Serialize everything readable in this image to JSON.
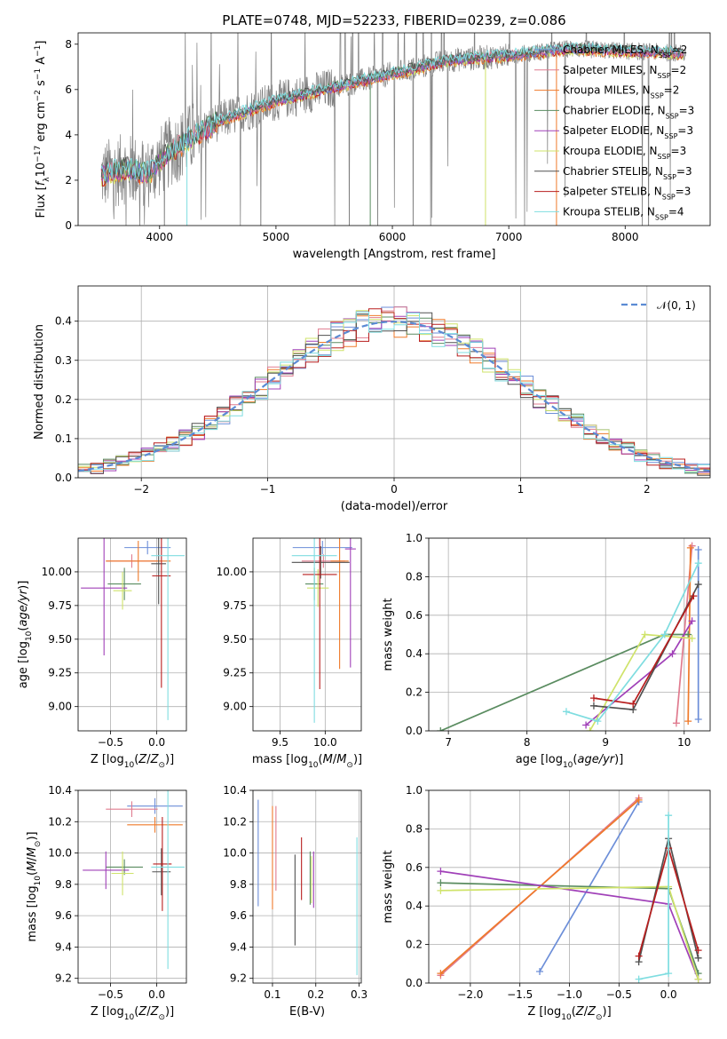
{
  "figure": {
    "title": "PLATE=0748, MJD=52233, FIBERID=0239, z=0.086"
  },
  "colors": [
    "#6c8ed8",
    "#e07b8f",
    "#ef7a2a",
    "#5a8c60",
    "#a040b8",
    "#cfe36a",
    "#505050",
    "#b81f1f",
    "#7fdde0"
  ],
  "chart_data": [
    {
      "type": "line",
      "title": "PLATE=0748, MJD=52233, FIBERID=0239, z=0.086",
      "xlabel": "wavelength [Angstrom, rest frame]",
      "ylabel": "Flux [f_λ10⁻¹⁷ erg cm⁻² s⁻¹ A⁻¹]",
      "xlim": [
        3300,
        8730
      ],
      "ylim": [
        0,
        8.5
      ],
      "xticks": [
        "4000",
        "5000",
        "6000",
        "7000",
        "8000"
      ],
      "yticks": [
        "0",
        "2",
        "4",
        "6",
        "8"
      ],
      "legend": [
        "Chabrier MILES, N_SSP=2",
        "Salpeter MILES, N_SSP=2",
        "Kroupa MILES, N_SSP=2",
        "Chabrier ELODIE, N_SSP=3",
        "Salpeter ELODIE, N_SSP=3",
        "Kroupa ELODIE, N_SSP=3",
        "Chabrier STELIB, N_SSP=3",
        "Salpeter STELIB, N_SSP=3",
        "Kroupa STELIB, N_SSP=4"
      ],
      "legend_display": [
        {
          "text": "Chabrier MILES, N",
          "sub": "SSP",
          "post": "=2"
        },
        {
          "text": "Salpeter MILES, N",
          "sub": "SSP",
          "post": "=2"
        },
        {
          "text": "Kroupa MILES, N",
          "sub": "SSP",
          "post": "=2"
        },
        {
          "text": "Chabrier ELODIE, N",
          "sub": "SSP",
          "post": "=3"
        },
        {
          "text": "Salpeter ELODIE, N",
          "sub": "SSP",
          "post": "=3"
        },
        {
          "text": "Kroupa ELODIE, N",
          "sub": "SSP",
          "post": "=3"
        },
        {
          "text": "Chabrier STELIB, N",
          "sub": "SSP",
          "post": "=3"
        },
        {
          "text": "Salpeter STELIB, N",
          "sub": "SSP",
          "post": "=3"
        },
        {
          "text": "Kroupa STELIB, N",
          "sub": "SSP",
          "post": "=4"
        }
      ],
      "legend_position": "right",
      "grid": false,
      "continuum": {
        "x": [
          3500,
          3700,
          3900,
          4100,
          4500,
          5000,
          5500,
          6000,
          6500,
          7000,
          7500,
          8000,
          8500
        ],
        "y": [
          2.2,
          2.5,
          2.3,
          3.3,
          4.6,
          5.5,
          6.1,
          6.7,
          7.3,
          7.5,
          7.8,
          7.7,
          7.6
        ]
      }
    },
    {
      "type": "line",
      "xlabel": "(data-model)/error",
      "ylabel": "Normed distribution",
      "xlim": [
        -2.5,
        2.5
      ],
      "ylim": [
        0,
        0.49
      ],
      "xticks": [
        "−2",
        "−1",
        "0",
        "1",
        "2"
      ],
      "yticks": [
        "0.0",
        "0.1",
        "0.2",
        "0.3",
        "0.4"
      ],
      "legend": [
        "𝒩(0, 1)"
      ],
      "legend_position": "top-right",
      "grid": true,
      "series": [
        {
          "x": [
            -2.5,
            -2.0,
            -1.5,
            -1.0,
            -0.5,
            0.0,
            0.5,
            1.0,
            1.5,
            2.0,
            2.5
          ],
          "y": [
            0.018,
            0.054,
            0.13,
            0.24,
            0.35,
            0.4,
            0.35,
            0.24,
            0.13,
            0.054,
            0.018
          ]
        }
      ]
    },
    {
      "type": "scatter",
      "xlabel": "Z [log₁₀(Z/Z☉)]",
      "ylabel": "age [log₁₀(age/yr)]",
      "xlim": [
        -0.85,
        0.32
      ],
      "ylim": [
        8.82,
        10.25
      ],
      "xticks": [
        "−0.5",
        "0.0"
      ],
      "yticks": [
        "9.00",
        "9.25",
        "9.50",
        "9.75",
        "10.00"
      ],
      "grid": true,
      "points": [
        {
          "x": -0.1,
          "y": 10.18,
          "xerr": 0.25,
          "yerr": 0.05
        },
        {
          "x": -0.27,
          "y": 10.08,
          "xerr": 0.28,
          "yerr": 0.05
        },
        {
          "x": -0.2,
          "y": 10.08,
          "xerr": 0.35,
          "yerr": 0.15
        },
        {
          "x": -0.35,
          "y": 9.91,
          "xerr": 0.18,
          "yerr": 0.12
        },
        {
          "x": -0.57,
          "y": 9.88,
          "xerr": 0.25,
          "yerr": 0.5
        },
        {
          "x": -0.37,
          "y": 9.86,
          "xerr": 0.1,
          "yerr": 0.14
        },
        {
          "x": 0.02,
          "y": 10.06,
          "xerr": 0.08,
          "yerr": 0.3
        },
        {
          "x": 0.05,
          "y": 9.97,
          "xerr": 0.1,
          "yerr": 0.83
        },
        {
          "x": 0.12,
          "y": 10.12,
          "xerr": 0.18,
          "yerr": 1.22
        }
      ]
    },
    {
      "type": "scatter",
      "xlabel": "mass [log₁₀(M/M☉)]",
      "ylabel": "",
      "xlim": [
        9.2,
        10.4
      ],
      "ylim": [
        8.82,
        10.25
      ],
      "xticks": [
        "9.5",
        "10.0"
      ],
      "yticks": [
        "9.00",
        "9.25",
        "9.50",
        "9.75",
        "10.00"
      ],
      "grid": true,
      "points": [
        {
          "x": 9.97,
          "y": 10.18,
          "xerr": 0.33,
          "yerr": 0.05
        },
        {
          "x": 9.98,
          "y": 10.08,
          "xerr": 0.24,
          "yerr": 0.05
        },
        {
          "x": 10.16,
          "y": 10.08,
          "xerr": 0.1,
          "yerr": 0.8
        },
        {
          "x": 9.88,
          "y": 9.91,
          "xerr": 0.1,
          "yerr": 0.12
        },
        {
          "x": 10.28,
          "y": 10.17,
          "xerr": 0.06,
          "yerr": 0.88
        },
        {
          "x": 9.92,
          "y": 9.88,
          "xerr": 0.12,
          "yerr": 0.14
        },
        {
          "x": 9.95,
          "y": 10.07,
          "xerr": 0.32,
          "yerr": 0.12
        },
        {
          "x": 9.94,
          "y": 9.98,
          "xerr": 0.19,
          "yerr": 0.85
        },
        {
          "x": 9.88,
          "y": 10.12,
          "xerr": 0.25,
          "yerr": 1.24
        }
      ]
    },
    {
      "type": "line",
      "xlabel": "age [log₁₀(age/yr)]",
      "ylabel": "mass weight",
      "xlim": [
        6.75,
        10.33
      ],
      "ylim": [
        0,
        1.0
      ],
      "xticks": [
        "7",
        "8",
        "9",
        "10"
      ],
      "yticks": [
        "0.0",
        "0.2",
        "0.4",
        "0.6",
        "0.8",
        "1.0"
      ],
      "grid": true,
      "series": [
        {
          "x": [
            10.18,
            10.18
          ],
          "y": [
            0.06,
            0.94
          ]
        },
        {
          "x": [
            9.9,
            10.1
          ],
          "y": [
            0.04,
            0.96
          ]
        },
        {
          "x": [
            10.05,
            10.08
          ],
          "y": [
            0.05,
            0.95
          ]
        },
        {
          "x": [
            6.9,
            9.75,
            10.05
          ],
          "y": [
            0.0,
            0.5,
            0.5
          ]
        },
        {
          "x": [
            8.75,
            9.85,
            10.1
          ],
          "y": [
            0.03,
            0.4,
            0.57
          ]
        },
        {
          "x": [
            8.8,
            9.5,
            10.1
          ],
          "y": [
            0.0,
            0.5,
            0.48
          ]
        },
        {
          "x": [
            8.85,
            9.35,
            10.18
          ],
          "y": [
            0.13,
            0.11,
            0.76
          ]
        },
        {
          "x": [
            8.85,
            9.35,
            10.12
          ],
          "y": [
            0.17,
            0.14,
            0.7
          ]
        },
        {
          "x": [
            8.5,
            8.9,
            9.75,
            10.18
          ],
          "y": [
            0.1,
            0.05,
            0.5,
            0.87
          ]
        }
      ]
    },
    {
      "type": "scatter",
      "xlabel": "Z [log₁₀(Z/Z☉)]",
      "ylabel": "mass [log₁₀(M/M☉)]",
      "xlim": [
        -0.85,
        0.32
      ],
      "ylim": [
        9.17,
        10.4
      ],
      "xticks": [
        "−0.5",
        "0.0"
      ],
      "yticks": [
        "9.2",
        "9.4",
        "9.6",
        "9.8",
        "10.0",
        "10.2",
        "10.4"
      ],
      "grid": true,
      "points": [
        {
          "x": -0.02,
          "y": 10.3,
          "xerr": 0.3,
          "yerr": 0.05
        },
        {
          "x": -0.27,
          "y": 10.28,
          "xerr": 0.28,
          "yerr": 0.05
        },
        {
          "x": -0.02,
          "y": 10.18,
          "xerr": 0.3,
          "yerr": 0.05
        },
        {
          "x": -0.35,
          "y": 9.91,
          "xerr": 0.2,
          "yerr": 0.05
        },
        {
          "x": -0.55,
          "y": 9.89,
          "xerr": 0.25,
          "yerr": 0.12
        },
        {
          "x": -0.37,
          "y": 9.87,
          "xerr": 0.12,
          "yerr": 0.14
        },
        {
          "x": 0.05,
          "y": 9.88,
          "xerr": 0.1,
          "yerr": 0.15
        },
        {
          "x": 0.06,
          "y": 9.93,
          "xerr": 0.1,
          "yerr": 0.3
        },
        {
          "x": 0.12,
          "y": 9.91,
          "xerr": 0.18,
          "yerr": 0.65
        }
      ]
    },
    {
      "type": "scatter",
      "xlabel": "E(B-V)",
      "ylabel": "",
      "xlim": [
        0.055,
        0.305
      ],
      "ylim": [
        9.17,
        10.4
      ],
      "xticks": [
        "0.1",
        "0.2",
        "0.3"
      ],
      "yticks": [
        "9.2",
        "9.4",
        "9.6",
        "9.8",
        "10.0",
        "10.2",
        "10.4"
      ],
      "grid": true,
      "points": [
        {
          "x": 0.067,
          "y": 10.0,
          "yerr": 0.34
        },
        {
          "x": 0.108,
          "y": 10.03,
          "yerr": 0.27
        },
        {
          "x": 0.1,
          "y": 9.97,
          "yerr": 0.33
        },
        {
          "x": 0.187,
          "y": 9.84,
          "yerr": 0.17
        },
        {
          "x": 0.195,
          "y": 9.83,
          "yerr": 0.18
        },
        {
          "x": 0.19,
          "y": 9.83,
          "yerr": 0.15
        },
        {
          "x": 0.152,
          "y": 9.7,
          "yerr": 0.29
        },
        {
          "x": 0.167,
          "y": 9.9,
          "yerr": 0.2
        },
        {
          "x": 0.295,
          "y": 9.66,
          "yerr": 0.44
        }
      ]
    },
    {
      "type": "line",
      "xlabel": "Z [log₁₀(Z/Z☉)]",
      "ylabel": "mass weight",
      "xlim": [
        -2.42,
        0.42
      ],
      "ylim": [
        0,
        1.0
      ],
      "xticks": [
        "−2.0",
        "−1.5",
        "−1.0",
        "−0.5",
        "0.0"
      ],
      "yticks": [
        "0.0",
        "0.2",
        "0.4",
        "0.6",
        "0.8",
        "1.0"
      ],
      "grid": true,
      "series": [
        {
          "x": [
            -1.3,
            -0.3
          ],
          "y": [
            0.06,
            0.94
          ]
        },
        {
          "x": [
            -2.3,
            -0.3
          ],
          "y": [
            0.04,
            0.96
          ]
        },
        {
          "x": [
            -2.3,
            -0.3
          ],
          "y": [
            0.05,
            0.95
          ]
        },
        {
          "x": [
            -2.3,
            0.0,
            0.3
          ],
          "y": [
            0.52,
            0.49,
            0.05
          ]
        },
        {
          "x": [
            -2.3,
            0.0,
            0.3
          ],
          "y": [
            0.58,
            0.41,
            0.02
          ]
        },
        {
          "x": [
            -2.3,
            0.0,
            0.3
          ],
          "y": [
            0.48,
            0.5,
            0.02
          ]
        },
        {
          "x": [
            -0.3,
            0.0,
            0.3
          ],
          "y": [
            0.11,
            0.75,
            0.13
          ]
        },
        {
          "x": [
            -0.3,
            0.0,
            0.3
          ],
          "y": [
            0.14,
            0.7,
            0.17
          ]
        },
        {
          "x": [
            0.0,
            0.0,
            -0.3
          ],
          "y": [
            0.87,
            0.05,
            0.02
          ]
        }
      ]
    }
  ]
}
